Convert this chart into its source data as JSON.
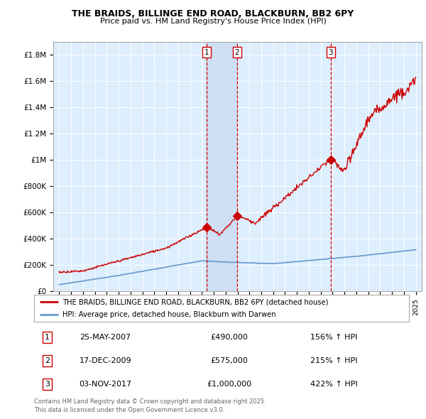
{
  "title1": "THE BRAIDS, BILLINGE END ROAD, BLACKBURN, BB2 6PY",
  "title2": "Price paid vs. HM Land Registry's House Price Index (HPI)",
  "legend1": "THE BRAIDS, BILLINGE END ROAD, BLACKBURN, BB2 6PY (detached house)",
  "legend2": "HPI: Average price, detached house, Blackburn with Darwen",
  "transactions": [
    {
      "num": 1,
      "date": "25-MAY-2007",
      "price": 490000,
      "x": 2007.38,
      "pct": "156% ↑ HPI"
    },
    {
      "num": 2,
      "date": "17-DEC-2009",
      "price": 575000,
      "x": 2009.95,
      "pct": "215% ↑ HPI"
    },
    {
      "num": 3,
      "date": "03-NOV-2017",
      "price": 1000000,
      "x": 2017.83,
      "pct": "422% ↑ HPI"
    }
  ],
  "footnote1": "Contains HM Land Registry data © Crown copyright and database right 2025.",
  "footnote2": "This data is licensed under the Open Government Licence v3.0.",
  "red_color": "#cc0000",
  "blue_color": "#6699cc",
  "bg_color": "#ddeeff",
  "shade_color": "#c8d8ee",
  "ylim": [
    0,
    1900000
  ],
  "xlim_start": 1994.5,
  "xlim_end": 2025.5,
  "yticks": [
    0,
    200000,
    400000,
    600000,
    800000,
    1000000,
    1200000,
    1400000,
    1600000,
    1800000
  ],
  "yticklabels": [
    "£0",
    "£200K",
    "£400K",
    "£600K",
    "£800K",
    "£1M",
    "£1.2M",
    "£1.4M",
    "£1.6M",
    "£1.8M"
  ],
  "xticks": [
    1995,
    1996,
    1997,
    1998,
    1999,
    2000,
    2001,
    2002,
    2003,
    2004,
    2005,
    2006,
    2007,
    2008,
    2009,
    2010,
    2011,
    2012,
    2013,
    2014,
    2015,
    2016,
    2017,
    2018,
    2019,
    2020,
    2021,
    2022,
    2023,
    2024,
    2025
  ]
}
